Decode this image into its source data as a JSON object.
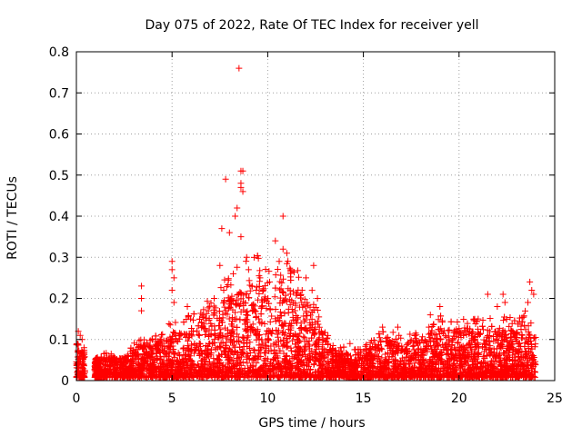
{
  "chart_data": {
    "type": "scatter",
    "title": "Day 075 of 2022, Rate Of TEC Index for receiver yell",
    "xlabel": "GPS time / hours",
    "ylabel": "ROTI / TECUs",
    "xlim": [
      0,
      25
    ],
    "ylim": [
      0,
      0.8
    ],
    "xticks": [
      0,
      5,
      10,
      15,
      20,
      25
    ],
    "yticks": [
      0,
      0.1,
      0.2,
      0.3,
      0.4,
      0.5,
      0.6,
      0.7,
      0.8
    ],
    "grid": true,
    "marker": "+",
    "series": [
      {
        "name": "ROTI",
        "color": "#ff0000",
        "points": [
          [
            8.5,
            0.76
          ],
          [
            7.8,
            0.49
          ],
          [
            8.6,
            0.51
          ],
          [
            8.7,
            0.51
          ],
          [
            8.6,
            0.48
          ],
          [
            8.6,
            0.47
          ],
          [
            8.7,
            0.46
          ],
          [
            8.4,
            0.42
          ],
          [
            8.3,
            0.4
          ],
          [
            10.8,
            0.4
          ],
          [
            7.6,
            0.37
          ],
          [
            8.0,
            0.36
          ],
          [
            8.6,
            0.35
          ],
          [
            10.4,
            0.34
          ],
          [
            3.4,
            0.23
          ],
          [
            3.4,
            0.2
          ],
          [
            3.4,
            0.17
          ],
          [
            5.0,
            0.29
          ],
          [
            5.0,
            0.27
          ],
          [
            5.1,
            0.25
          ],
          [
            5.0,
            0.22
          ],
          [
            5.1,
            0.19
          ],
          [
            5.8,
            0.18
          ],
          [
            7.5,
            0.28
          ],
          [
            8.9,
            0.3
          ],
          [
            9.0,
            0.27
          ],
          [
            10.8,
            0.32
          ],
          [
            11.0,
            0.31
          ],
          [
            10.6,
            0.29
          ],
          [
            12.4,
            0.28
          ],
          [
            11.2,
            0.27
          ],
          [
            12.0,
            0.25
          ],
          [
            9.6,
            0.25
          ],
          [
            7.7,
            0.22
          ],
          [
            7.2,
            0.2
          ],
          [
            6.9,
            0.17
          ],
          [
            0.1,
            0.12
          ],
          [
            0.2,
            0.11
          ],
          [
            0.3,
            0.1
          ],
          [
            0.4,
            0.08
          ],
          [
            0.0,
            0.04
          ],
          [
            0.1,
            0.03
          ],
          [
            0.4,
            0.02
          ],
          [
            21.5,
            0.21
          ],
          [
            22.3,
            0.21
          ],
          [
            23.7,
            0.24
          ],
          [
            23.8,
            0.22
          ],
          [
            23.9,
            0.21
          ],
          [
            23.6,
            0.19
          ],
          [
            22.4,
            0.19
          ],
          [
            22.0,
            0.18
          ],
          [
            19.0,
            0.18
          ],
          [
            21.0,
            0.15
          ],
          [
            18.5,
            0.16
          ],
          [
            16.0,
            0.13
          ],
          [
            16.8,
            0.13
          ],
          [
            14.3,
            0.09
          ],
          [
            13.8,
            0.08
          ],
          [
            4.3,
            0.09
          ],
          [
            6.6,
            0.16
          ],
          [
            8.2,
            0.26
          ],
          [
            9.4,
            0.22
          ],
          [
            10.1,
            0.24
          ],
          [
            11.8,
            0.22
          ],
          [
            12.6,
            0.2
          ]
        ],
        "envelope": [
          [
            0.0,
            0.07
          ],
          [
            0.5,
            0.06
          ],
          [
            1.0,
            0.04
          ],
          [
            1.5,
            0.05
          ],
          [
            2.0,
            0.05
          ],
          [
            2.5,
            0.05
          ],
          [
            3.0,
            0.07
          ],
          [
            3.5,
            0.08
          ],
          [
            4.0,
            0.08
          ],
          [
            4.5,
            0.09
          ],
          [
            5.0,
            0.11
          ],
          [
            5.5,
            0.11
          ],
          [
            6.0,
            0.12
          ],
          [
            6.5,
            0.13
          ],
          [
            7.0,
            0.15
          ],
          [
            7.5,
            0.18
          ],
          [
            8.0,
            0.19
          ],
          [
            8.5,
            0.21
          ],
          [
            9.0,
            0.22
          ],
          [
            9.5,
            0.23
          ],
          [
            10.0,
            0.2
          ],
          [
            10.5,
            0.2
          ],
          [
            11.0,
            0.22
          ],
          [
            11.5,
            0.21
          ],
          [
            12.0,
            0.19
          ],
          [
            12.5,
            0.15
          ],
          [
            13.0,
            0.09
          ],
          [
            13.5,
            0.07
          ],
          [
            14.0,
            0.06
          ],
          [
            14.5,
            0.06
          ],
          [
            15.0,
            0.06
          ],
          [
            15.5,
            0.08
          ],
          [
            16.0,
            0.09
          ],
          [
            16.5,
            0.09
          ],
          [
            17.0,
            0.08
          ],
          [
            17.5,
            0.09
          ],
          [
            18.0,
            0.09
          ],
          [
            18.5,
            0.11
          ],
          [
            19.0,
            0.12
          ],
          [
            19.5,
            0.12
          ],
          [
            20.0,
            0.11
          ],
          [
            20.5,
            0.12
          ],
          [
            21.0,
            0.11
          ],
          [
            21.5,
            0.12
          ],
          [
            22.0,
            0.11
          ],
          [
            22.5,
            0.12
          ],
          [
            23.0,
            0.11
          ],
          [
            23.5,
            0.13
          ],
          [
            24.0,
            0.12
          ]
        ]
      }
    ]
  }
}
